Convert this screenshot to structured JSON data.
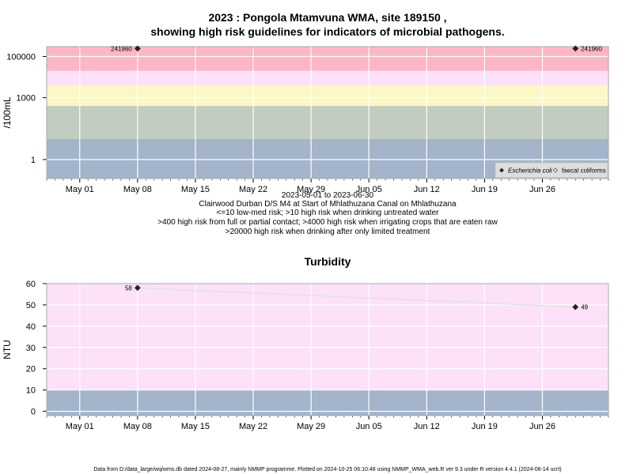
{
  "figure_title_line1": "2023 : Pongola Mtamvuna WMA, site 189150 ,",
  "figure_title_line2": "showing high risk guidelines for indicators of microbial pathogens.",
  "notes": [
    "2023-05-01 to 2023-06-30",
    "Clairwood Durban D/S M4 at Start of Mhlathuzana Canal on Mhlathuzana",
    "<=10 low-med risk; >10 high risk when drinking untreated water",
    ">400 high risk from full or partial contact; >4000 high risk when irrigating crops that are eaten raw",
    ">20000 high risk when drinking after only limited treatment"
  ],
  "footer": "Data from D:/data_large/wq/wms.db dated 2024-08-27, mainly NMMP programme. Plotted on 2024-10-25 06:10:48 using NMMP_WMA_web.R ver 9.3 under R version 4.4.1 (2024-06-14 ucrt)",
  "chart_data": [
    {
      "type": "scatter",
      "title": "",
      "ylabel": "/100mL",
      "y_scale": "log",
      "xlim": [
        "2023-04-27",
        "2023-07-04"
      ],
      "ylim": [
        0.12,
        300000
      ],
      "x_tick_labels": [
        "May 01",
        "May 08",
        "May 15",
        "May 22",
        "May 29",
        "Jun 05",
        "Jun 12",
        "Jun 19",
        "Jun 26"
      ],
      "x_ticks": [
        "2023-05-01",
        "2023-05-08",
        "2023-05-15",
        "2023-05-22",
        "2023-05-29",
        "2023-06-05",
        "2023-06-12",
        "2023-06-19",
        "2023-06-26"
      ],
      "y_tick_labels": [
        "1",
        "1000",
        "100000"
      ],
      "y_ticks": [
        1,
        1000,
        100000
      ],
      "bands": [
        {
          "from": 0.12,
          "to": 10,
          "color": "#a3b4cb"
        },
        {
          "from": 10,
          "to": 400,
          "color": "#c2ccc0"
        },
        {
          "from": 400,
          "to": 4000,
          "color": "#fbf7c6"
        },
        {
          "from": 4000,
          "to": 20000,
          "color": "#fde1f8"
        },
        {
          "from": 20000,
          "to": 300000,
          "color": "#fdb6c4"
        }
      ],
      "series": [
        {
          "name": "Escherichia coli",
          "marker": "filled-diamond",
          "x": [
            "2023-05-08",
            "2023-06-30"
          ],
          "y": [
            241960,
            241960
          ],
          "labels": [
            "241960",
            "241960"
          ]
        },
        {
          "name": "faecal coliforms",
          "marker": "open-diamond",
          "x": [],
          "y": []
        }
      ],
      "legend": "bottom-right",
      "grid": true
    },
    {
      "type": "line",
      "title": "Turbidity",
      "ylabel": "NTU",
      "xlim": [
        "2023-04-27",
        "2023-07-04"
      ],
      "ylim": [
        -2,
        60
      ],
      "x_tick_labels": [
        "May 01",
        "May 08",
        "May 15",
        "May 22",
        "May 29",
        "Jun 05",
        "Jun 12",
        "Jun 19",
        "Jun 26"
      ],
      "x_ticks": [
        "2023-05-01",
        "2023-05-08",
        "2023-05-15",
        "2023-05-22",
        "2023-05-29",
        "2023-06-05",
        "2023-06-12",
        "2023-06-19",
        "2023-06-26"
      ],
      "y_tick_labels": [
        "0",
        "10",
        "20",
        "30",
        "40",
        "50",
        "60"
      ],
      "y_ticks": [
        0,
        10,
        20,
        30,
        40,
        50,
        60
      ],
      "bands": [
        {
          "from": -2,
          "to": 10,
          "color": "#a3b4cb"
        },
        {
          "from": 10,
          "to": 60,
          "color": "#fde1f8"
        }
      ],
      "series": [
        {
          "x": [
            "2023-05-08",
            "2023-06-30"
          ],
          "y": [
            58,
            49
          ],
          "labels": [
            "58",
            "49"
          ]
        }
      ],
      "grid": true
    }
  ]
}
